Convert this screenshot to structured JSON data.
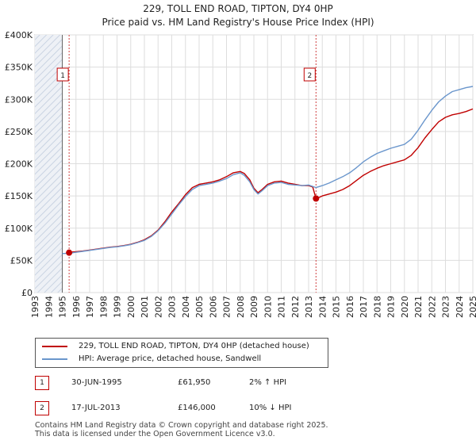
{
  "title_line1": "229, TOLL END ROAD, TIPTON, DY4 0HP",
  "title_line2": "Price paid vs. HM Land Registry's House Price Index (HPI)",
  "colors": {
    "property": "#c00000",
    "hpi": "#6a96cc",
    "shade": "#dde5f0",
    "grid": "#dddddd"
  },
  "chart_data": {
    "type": "line",
    "title": "229, TOLL END ROAD, TIPTON, DY4 0HP — Price paid vs. HM Land Registry's House Price Index (HPI)",
    "xlabel": "",
    "ylabel": "",
    "xlim": [
      1993,
      2025
    ],
    "ylim": [
      0,
      400000
    ],
    "x_ticks": [
      "1993",
      "1994",
      "1995",
      "1996",
      "1997",
      "1998",
      "1999",
      "2000",
      "2001",
      "2002",
      "2003",
      "2004",
      "2005",
      "2006",
      "2007",
      "2008",
      "2009",
      "2010",
      "2011",
      "2012",
      "2013",
      "2014",
      "2015",
      "2016",
      "2017",
      "2018",
      "2019",
      "2020",
      "2021",
      "2022",
      "2023",
      "2024",
      "2025"
    ],
    "y_ticks": [
      {
        "value": 0,
        "label": "£0"
      },
      {
        "value": 50000,
        "label": "£50K"
      },
      {
        "value": 100000,
        "label": "£100K"
      },
      {
        "value": 150000,
        "label": "£150K"
      },
      {
        "value": 200000,
        "label": "£200K"
      },
      {
        "value": 250000,
        "label": "£250K"
      },
      {
        "value": 300000,
        "label": "£300K"
      },
      {
        "value": 350000,
        "label": "£350K"
      },
      {
        "value": 400000,
        "label": "£400K"
      }
    ],
    "shaded_region": {
      "x_from": 1993,
      "x_to": 1995.0,
      "note": "hatched area before data"
    },
    "series": [
      {
        "name": "229, TOLL END ROAD, TIPTON, DY4 0HP (detached house)",
        "color": "#c00000",
        "points": [
          [
            1995.5,
            61950
          ],
          [
            1995.75,
            63000
          ],
          [
            1996,
            63500
          ],
          [
            1996.5,
            64500
          ],
          [
            1997,
            66000
          ],
          [
            1997.5,
            67500
          ],
          [
            1998,
            69000
          ],
          [
            1998.5,
            70500
          ],
          [
            1999,
            71500
          ],
          [
            1999.5,
            73000
          ],
          [
            2000,
            75000
          ],
          [
            2000.5,
            78000
          ],
          [
            2001,
            82000
          ],
          [
            2001.5,
            88000
          ],
          [
            2002,
            97000
          ],
          [
            2002.5,
            110000
          ],
          [
            2003,
            125000
          ],
          [
            2003.5,
            138000
          ],
          [
            2004,
            152000
          ],
          [
            2004.5,
            163000
          ],
          [
            2005,
            168000
          ],
          [
            2005.5,
            170000
          ],
          [
            2006,
            172000
          ],
          [
            2006.5,
            175000
          ],
          [
            2007,
            180000
          ],
          [
            2007.5,
            186000
          ],
          [
            2008,
            188000
          ],
          [
            2008.3,
            185000
          ],
          [
            2008.7,
            175000
          ],
          [
            2009,
            162000
          ],
          [
            2009.3,
            155000
          ],
          [
            2009.6,
            160000
          ],
          [
            2010,
            168000
          ],
          [
            2010.5,
            172000
          ],
          [
            2011,
            173000
          ],
          [
            2011.5,
            170000
          ],
          [
            2012,
            168000
          ],
          [
            2012.5,
            166000
          ],
          [
            2013,
            166000
          ],
          [
            2013.3,
            164000
          ],
          [
            2013.54,
            146000
          ],
          [
            2013.8,
            148000
          ],
          [
            2014,
            150000
          ],
          [
            2014.5,
            153000
          ],
          [
            2015,
            156000
          ],
          [
            2015.5,
            160000
          ],
          [
            2016,
            166000
          ],
          [
            2016.5,
            174000
          ],
          [
            2017,
            182000
          ],
          [
            2017.5,
            188000
          ],
          [
            2018,
            193000
          ],
          [
            2018.5,
            197000
          ],
          [
            2019,
            200000
          ],
          [
            2019.5,
            203000
          ],
          [
            2020,
            206000
          ],
          [
            2020.5,
            213000
          ],
          [
            2021,
            225000
          ],
          [
            2021.5,
            240000
          ],
          [
            2022,
            253000
          ],
          [
            2022.5,
            265000
          ],
          [
            2023,
            272000
          ],
          [
            2023.5,
            276000
          ],
          [
            2024,
            278000
          ],
          [
            2024.5,
            281000
          ],
          [
            2025,
            285000
          ]
        ]
      },
      {
        "name": "HPI: Average price, detached house, Sandwell",
        "color": "#6a96cc",
        "points": [
          [
            1995,
            60500
          ],
          [
            1995.5,
            61000
          ],
          [
            1996,
            62500
          ],
          [
            1996.5,
            64000
          ],
          [
            1997,
            65500
          ],
          [
            1997.5,
            67000
          ],
          [
            1998,
            68500
          ],
          [
            1998.5,
            70000
          ],
          [
            1999,
            71000
          ],
          [
            1999.5,
            72500
          ],
          [
            2000,
            74500
          ],
          [
            2000.5,
            77500
          ],
          [
            2001,
            81000
          ],
          [
            2001.5,
            87000
          ],
          [
            2002,
            96000
          ],
          [
            2002.5,
            108000
          ],
          [
            2003,
            122000
          ],
          [
            2003.5,
            136000
          ],
          [
            2004,
            149000
          ],
          [
            2004.5,
            160000
          ],
          [
            2005,
            166000
          ],
          [
            2005.5,
            168000
          ],
          [
            2006,
            170000
          ],
          [
            2006.5,
            173000
          ],
          [
            2007,
            177000
          ],
          [
            2007.5,
            183000
          ],
          [
            2008,
            186000
          ],
          [
            2008.3,
            182000
          ],
          [
            2008.7,
            172000
          ],
          [
            2009,
            160000
          ],
          [
            2009.3,
            153000
          ],
          [
            2009.6,
            158000
          ],
          [
            2010,
            166000
          ],
          [
            2010.5,
            170000
          ],
          [
            2011,
            171000
          ],
          [
            2011.5,
            168000
          ],
          [
            2012,
            167000
          ],
          [
            2012.5,
            166000
          ],
          [
            2013,
            167000
          ],
          [
            2013.54,
            163000
          ],
          [
            2014,
            166000
          ],
          [
            2014.5,
            170000
          ],
          [
            2015,
            175000
          ],
          [
            2015.5,
            180000
          ],
          [
            2016,
            186000
          ],
          [
            2016.5,
            194000
          ],
          [
            2017,
            203000
          ],
          [
            2017.5,
            210000
          ],
          [
            2018,
            216000
          ],
          [
            2018.5,
            220000
          ],
          [
            2019,
            224000
          ],
          [
            2019.5,
            227000
          ],
          [
            2020,
            230000
          ],
          [
            2020.5,
            238000
          ],
          [
            2021,
            252000
          ],
          [
            2021.5,
            268000
          ],
          [
            2022,
            283000
          ],
          [
            2022.5,
            296000
          ],
          [
            2023,
            305000
          ],
          [
            2023.5,
            312000
          ],
          [
            2024,
            315000
          ],
          [
            2024.5,
            318000
          ],
          [
            2025,
            320000
          ]
        ]
      }
    ],
    "markers": [
      {
        "id": "1",
        "x": 1995.5,
        "y": 61950
      },
      {
        "id": "2",
        "x": 2013.54,
        "y": 146000
      }
    ]
  },
  "legend": {
    "property_label": "229, TOLL END ROAD, TIPTON, DY4 0HP (detached house)",
    "hpi_label": "HPI: Average price, detached house, Sandwell"
  },
  "transactions": [
    {
      "id": "1",
      "date": "30-JUN-1995",
      "price": "£61,950",
      "hpi": "2% ↑ HPI"
    },
    {
      "id": "2",
      "date": "17-JUL-2013",
      "price": "£146,000",
      "hpi": "10% ↓ HPI"
    }
  ],
  "footer": {
    "line1": "Contains HM Land Registry data © Crown copyright and database right 2025.",
    "line2": "This data is licensed under the Open Government Licence v3.0."
  }
}
